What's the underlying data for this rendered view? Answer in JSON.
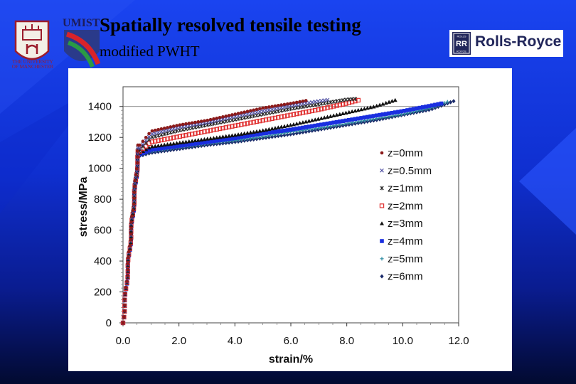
{
  "slide": {
    "title": "Spatially resolved tensile testing",
    "subtitle": "modified PWHT"
  },
  "logos": {
    "university_caption": "THE UNIVERSITY OF MANCHESTER",
    "umist": "UMIST",
    "rolls_royce": "Rolls-Royce",
    "rolls_royce_badge_top": "ROLLS",
    "rolls_royce_badge_bottom": "ROYCE"
  },
  "colors": {
    "background": "#1436e6",
    "z0": "#8b1a1a",
    "z05": "#4a4aa0",
    "z1": "#222222",
    "z2": "#e03030",
    "z3": "#111111",
    "z4": "#1a2fe0",
    "z5": "#2a8aa0",
    "z6": "#1a2a6a"
  },
  "chart_data": {
    "type": "scatter",
    "xlabel": "strain/%",
    "ylabel": "stress/MPa",
    "xlim": [
      0,
      12
    ],
    "ylim": [
      0,
      1500
    ],
    "xticks": [
      "0.0",
      "2.0",
      "4.0",
      "6.0",
      "8.0",
      "10.0",
      "12.0"
    ],
    "yticks": [
      "0",
      "200",
      "400",
      "600",
      "800",
      "1000",
      "1200",
      "1400"
    ],
    "legend_position": "right",
    "series": [
      {
        "name": "z=0mm",
        "marker": "circle",
        "yield": 1150,
        "x": [
          0.6,
          1.0,
          2.0,
          3.0,
          4.0,
          5.0,
          6.0,
          6.6
        ],
        "y": [
          1150,
          1240,
          1280,
          1310,
          1350,
          1390,
          1420,
          1440
        ]
      },
      {
        "name": "z=0.5mm",
        "marker": "x",
        "yield": 1130,
        "x": [
          0.6,
          1.0,
          2.0,
          3.0,
          4.0,
          5.0,
          6.0,
          7.0,
          7.4
        ],
        "y": [
          1130,
          1220,
          1265,
          1295,
          1335,
          1370,
          1405,
          1435,
          1445
        ]
      },
      {
        "name": "z=1mm",
        "marker": "star",
        "yield": 1120,
        "x": [
          0.6,
          1.0,
          2.0,
          3.0,
          4.0,
          5.0,
          6.0,
          7.0,
          8.0,
          8.4
        ],
        "y": [
          1120,
          1200,
          1245,
          1280,
          1315,
          1350,
          1385,
          1415,
          1445,
          1450
        ]
      },
      {
        "name": "z=2mm",
        "marker": "square",
        "yield": 1110,
        "x": [
          0.6,
          1.0,
          2.0,
          3.0,
          4.0,
          5.0,
          6.0,
          7.0,
          8.0,
          8.5
        ],
        "y": [
          1110,
          1170,
          1205,
          1240,
          1275,
          1310,
          1345,
          1380,
          1420,
          1445
        ]
      },
      {
        "name": "z=3mm",
        "marker": "triangle",
        "yield": 1100,
        "x": [
          0.6,
          1.0,
          2.0,
          3.0,
          4.0,
          5.0,
          6.0,
          7.0,
          8.0,
          9.0,
          9.8
        ],
        "y": [
          1100,
          1140,
          1165,
          1190,
          1215,
          1245,
          1280,
          1320,
          1360,
          1400,
          1445
        ]
      },
      {
        "name": "z=4mm",
        "marker": "bigsquare",
        "yield": 1090,
        "x": [
          0.6,
          1.0,
          2.0,
          3.0,
          4.0,
          5.0,
          6.0,
          7.0,
          8.0,
          9.0,
          10.0,
          11.0,
          11.4
        ],
        "y": [
          1090,
          1120,
          1145,
          1170,
          1195,
          1225,
          1250,
          1280,
          1310,
          1340,
          1370,
          1405,
          1420
        ]
      },
      {
        "name": "z=5mm",
        "marker": "plus",
        "yield": 1090,
        "x": [
          0.6,
          1.0,
          2.0,
          3.0,
          4.0,
          5.0,
          6.0,
          7.0,
          8.0,
          9.0,
          10.0,
          11.0,
          11.6
        ],
        "y": [
          1090,
          1110,
          1135,
          1160,
          1180,
          1205,
          1235,
          1260,
          1290,
          1320,
          1350,
          1390,
          1430
        ]
      },
      {
        "name": "z=6mm",
        "marker": "diamond",
        "yield": 1080,
        "x": [
          0.6,
          1.0,
          2.0,
          3.0,
          4.0,
          5.0,
          6.0,
          7.0,
          8.0,
          9.0,
          10.0,
          11.0,
          11.9
        ],
        "y": [
          1080,
          1100,
          1125,
          1150,
          1170,
          1195,
          1220,
          1250,
          1280,
          1310,
          1345,
          1380,
          1440
        ]
      }
    ]
  }
}
